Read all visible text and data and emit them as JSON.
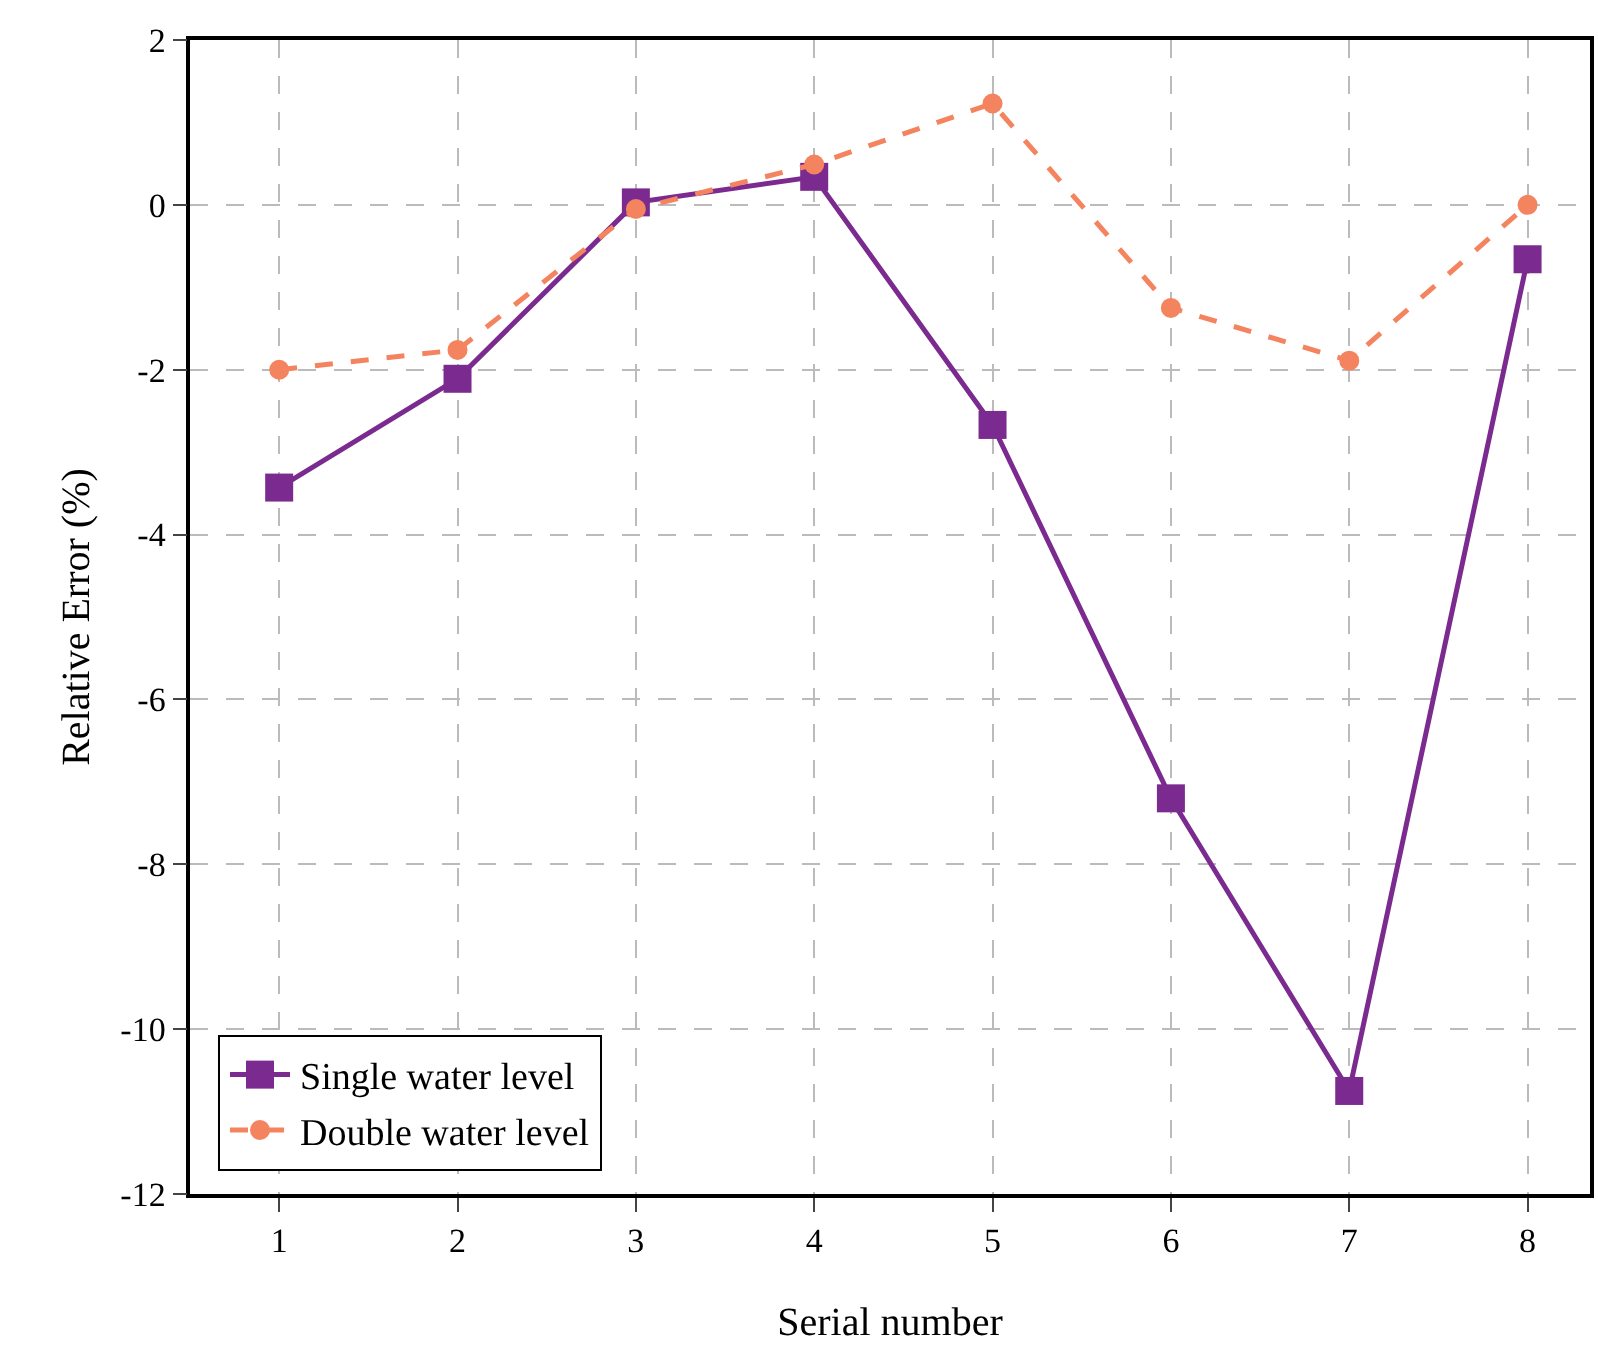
{
  "chart_data": {
    "type": "line",
    "xlabel": "Serial number",
    "ylabel": "Relative Error (%)",
    "x": [
      1,
      2,
      3,
      4,
      5,
      6,
      7,
      8
    ],
    "series": [
      {
        "name": "Single water level",
        "color": "#7b2a8f",
        "marker": "square",
        "line_style": "solid",
        "values": [
          -3.43,
          -2.11,
          0.03,
          0.34,
          -2.67,
          -7.2,
          -10.75,
          -0.66
        ]
      },
      {
        "name": "Double water level",
        "color": "#f4845f",
        "marker": "circle",
        "line_style": "dashed",
        "values": [
          -2.0,
          -1.76,
          -0.05,
          0.49,
          1.23,
          -1.25,
          -1.89,
          0.0
        ]
      }
    ],
    "xlim": [
      0.5,
      8.35
    ],
    "ylim": [
      -12,
      2
    ],
    "xticks": [
      1,
      2,
      3,
      4,
      5,
      6,
      7,
      8
    ],
    "yticks": [
      -12,
      -10,
      -8,
      -6,
      -4,
      -2,
      0,
      2
    ],
    "grid": true,
    "legend": "bottom left"
  }
}
